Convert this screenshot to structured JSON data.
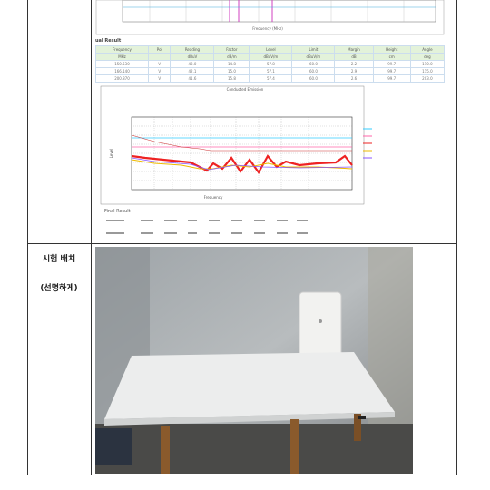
{
  "top_chart": {
    "x_label": "Frequency (MHz)"
  },
  "result_table": {
    "title": "ual Result",
    "headers": [
      "Frequency",
      "Pol",
      "Reading",
      "Factor",
      "Level",
      "Limit",
      "Margin",
      "Height",
      "Angle"
    ],
    "units": [
      "MHz",
      "",
      "dBuV",
      "dB/m",
      "dBuV/m",
      "dBuV/m",
      "dB",
      "cm",
      "deg"
    ],
    "rows": [
      [
        "150.530",
        "V",
        "43.0",
        "14.8",
        "57.8",
        "60.0",
        "2.2",
        "99.7",
        "110.0"
      ],
      [
        "166.140",
        "V",
        "42.1",
        "15.0",
        "57.1",
        "60.0",
        "2.9",
        "99.7",
        "115.0"
      ],
      [
        "200.870",
        "V",
        "41.6",
        "15.8",
        "57.4",
        "60.0",
        "2.6",
        "99.7",
        "203.0"
      ]
    ]
  },
  "spectrum": {
    "title": "Conducted Emission",
    "x_label": "Frequency",
    "y_label": "Level"
  },
  "final_result": {
    "title": "Final Result"
  },
  "setup": {
    "label": "시험 배치",
    "note": "(선명하게)"
  }
}
